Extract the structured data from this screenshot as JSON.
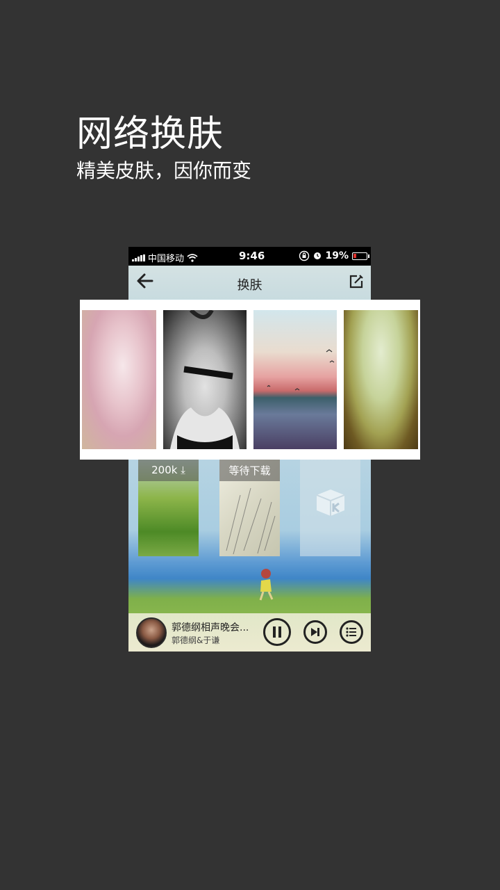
{
  "header": {
    "title": "网络换肤",
    "subtitle": "精美皮肤，因你而变"
  },
  "phone": {
    "status_bar": {
      "carrier": "中国移动",
      "time": "9:46",
      "battery": "19%"
    },
    "nav": {
      "back_icon": "arrow-left-icon",
      "title": "换肤",
      "edit_icon": "edit-icon"
    },
    "skins": [
      {
        "badge": "200k ⤓"
      },
      {
        "badge": "等待下载"
      },
      {
        "badge": ""
      }
    ],
    "player": {
      "track_title": "郭德纲相声晚会...",
      "artist": "郭德纲&于谦",
      "buttons": [
        "pause-icon",
        "next-icon",
        "playlist-icon"
      ]
    }
  },
  "colors": {
    "background": "#333333",
    "text": "#ffffff",
    "battery_low": "#e0302a"
  }
}
